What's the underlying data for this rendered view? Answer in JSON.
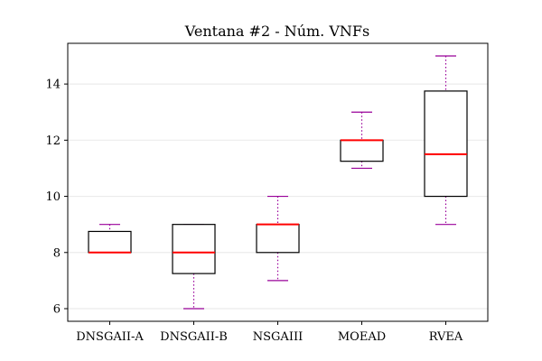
{
  "chart_data": {
    "type": "box",
    "title": "Ventana #2 - Núm. VNFs",
    "xlabel": "",
    "ylabel": "",
    "categories": [
      "DNSGAII-A",
      "DNSGAII-B",
      "NSGAIII",
      "MOEAD",
      "RVEA"
    ],
    "boxes": [
      {
        "min": 8,
        "q1": 8,
        "median": 8,
        "q3": 8.75,
        "max": 9
      },
      {
        "min": 6,
        "q1": 7.25,
        "median": 8,
        "q3": 9,
        "max": 9
      },
      {
        "min": 7,
        "q1": 8,
        "median": 9,
        "q3": 9,
        "max": 10
      },
      {
        "min": 11,
        "q1": 11.25,
        "median": 12,
        "q3": 12,
        "max": 13
      },
      {
        "min": 9,
        "q1": 10,
        "median": 11.5,
        "q3": 13.75,
        "max": 15
      }
    ],
    "yticks": [
      6,
      8,
      10,
      12,
      14
    ],
    "ylim": [
      5.55,
      15.45
    ],
    "grid": true,
    "colors": {
      "box_edge": "#000000",
      "median": "#ff0000",
      "whisker": "#990099",
      "grid": "#ebebeb"
    }
  }
}
